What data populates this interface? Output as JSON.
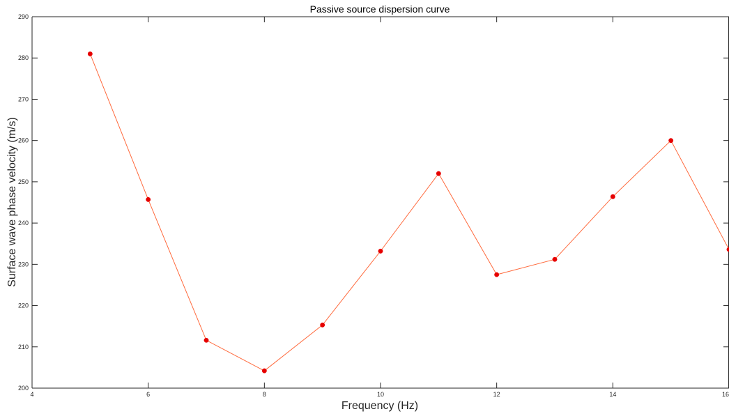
{
  "chart_data": {
    "type": "line",
    "title": "Passive source dispersion curve",
    "xlabel": "Frequency (Hz)",
    "ylabel": "Surface wave phase velocity (m/s)",
    "xlim": [
      4,
      16
    ],
    "ylim": [
      200,
      290
    ],
    "xticks": [
      "4",
      "6",
      "8",
      "10",
      "12",
      "14",
      "16"
    ],
    "yticks": [
      "200",
      "210",
      "220",
      "230",
      "240",
      "250",
      "260",
      "270",
      "280",
      "290"
    ],
    "grid": false,
    "series": [
      {
        "x": [
          5,
          6,
          7,
          8,
          9,
          10,
          11,
          12,
          13,
          14,
          15,
          16
        ],
        "y": [
          281,
          245.7,
          211.6,
          204.2,
          215.3,
          233.2,
          252,
          227.5,
          231.2,
          246.4,
          260,
          233.6
        ],
        "line_color": "#ff6a3d",
        "marker_color": "#e60000"
      }
    ]
  }
}
